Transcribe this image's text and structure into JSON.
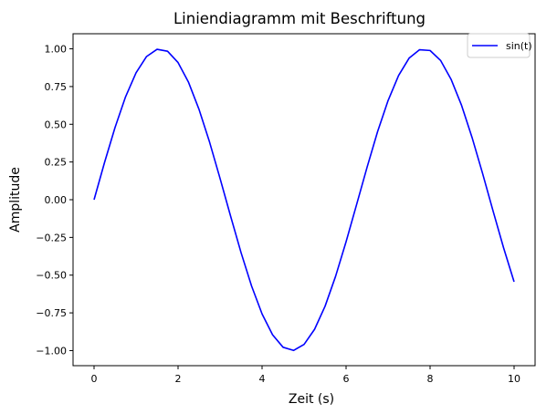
{
  "chart_data": {
    "type": "line",
    "title": "Liniendiagramm mit Beschriftung",
    "xlabel": "Zeit (s)",
    "ylabel": "Amplitude",
    "xlim": [
      -0.5,
      10.5
    ],
    "ylim": [
      -1.1,
      1.1
    ],
    "xticks": [
      0,
      2,
      4,
      6,
      8,
      10
    ],
    "xtick_labels": [
      "0",
      "2",
      "4",
      "6",
      "8",
      "10"
    ],
    "yticks": [
      -1.0,
      -0.75,
      -0.5,
      -0.25,
      0.0,
      0.25,
      0.5,
      0.75,
      1.0
    ],
    "ytick_labels": [
      "−1.00",
      "−0.75",
      "−0.50",
      "−0.25",
      "0.00",
      "0.25",
      "0.50",
      "0.75",
      "1.00"
    ],
    "grid": false,
    "legend_position": "top-right",
    "series": [
      {
        "name": "sin(t)",
        "color": "#0000ff",
        "x": [
          0.0,
          0.25,
          0.5,
          0.75,
          1.0,
          1.25,
          1.5,
          1.75,
          2.0,
          2.25,
          2.5,
          2.75,
          3.0,
          3.25,
          3.5,
          3.75,
          4.0,
          4.25,
          4.5,
          4.75,
          5.0,
          5.25,
          5.5,
          5.75,
          6.0,
          6.25,
          6.5,
          6.75,
          7.0,
          7.25,
          7.5,
          7.75,
          8.0,
          8.25,
          8.5,
          8.75,
          9.0,
          9.25,
          9.5,
          9.75,
          10.0
        ],
        "y": [
          0.0,
          0.247,
          0.479,
          0.682,
          0.841,
          0.949,
          0.997,
          0.984,
          0.909,
          0.778,
          0.598,
          0.382,
          0.141,
          -0.108,
          -0.351,
          -0.572,
          -0.757,
          -0.895,
          -0.978,
          -0.999,
          -0.959,
          -0.859,
          -0.706,
          -0.508,
          -0.279,
          -0.033,
          0.215,
          0.451,
          0.657,
          0.823,
          0.938,
          0.994,
          0.989,
          0.923,
          0.798,
          0.625,
          0.412,
          0.174,
          -0.075,
          -0.319,
          -0.544
        ]
      }
    ]
  }
}
